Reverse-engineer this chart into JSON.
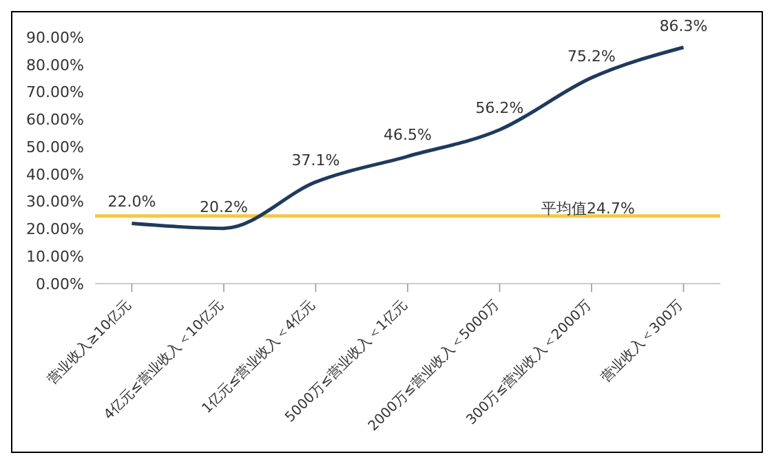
{
  "chart_data": {
    "type": "line",
    "categories": [
      "营业收入≥10亿元",
      "4亿元≤营业收入＜10亿元",
      "1亿元≤营业收入＜4亿元",
      "5000万≤营业收入＜1亿元",
      "2000万≤营业收入＜5000万",
      "300万≤营业收入＜2000万",
      "营业收入＜300万"
    ],
    "series": [
      {
        "color": "#1f3a5c",
        "values": [
          22.0,
          20.2,
          37.1,
          46.5,
          56.2,
          75.2,
          86.3
        ],
        "value_labels": [
          "22.0%",
          "20.2%",
          "37.1%",
          "46.5%",
          "56.2%",
          "75.2%",
          "86.3%"
        ]
      }
    ],
    "ylim": [
      0,
      90
    ],
    "yticks": [
      {
        "value": 0,
        "label": "0.00%"
      },
      {
        "value": 10,
        "label": "10.00%"
      },
      {
        "value": 20,
        "label": "20.00%"
      },
      {
        "value": 30,
        "label": "30.00%"
      },
      {
        "value": 40,
        "label": "40.00%"
      },
      {
        "value": 50,
        "label": "50.00%"
      },
      {
        "value": 60,
        "label": "60.00%"
      },
      {
        "value": 70,
        "label": "70.00%"
      },
      {
        "value": 80,
        "label": "80.00%"
      },
      {
        "value": 90,
        "label": "90.00%"
      }
    ],
    "ref_lines": [
      {
        "axis": "y",
        "value": 24.7,
        "label": "平均值24.7%",
        "color": "#f5c842"
      }
    ],
    "grid": false,
    "marker": "none"
  }
}
